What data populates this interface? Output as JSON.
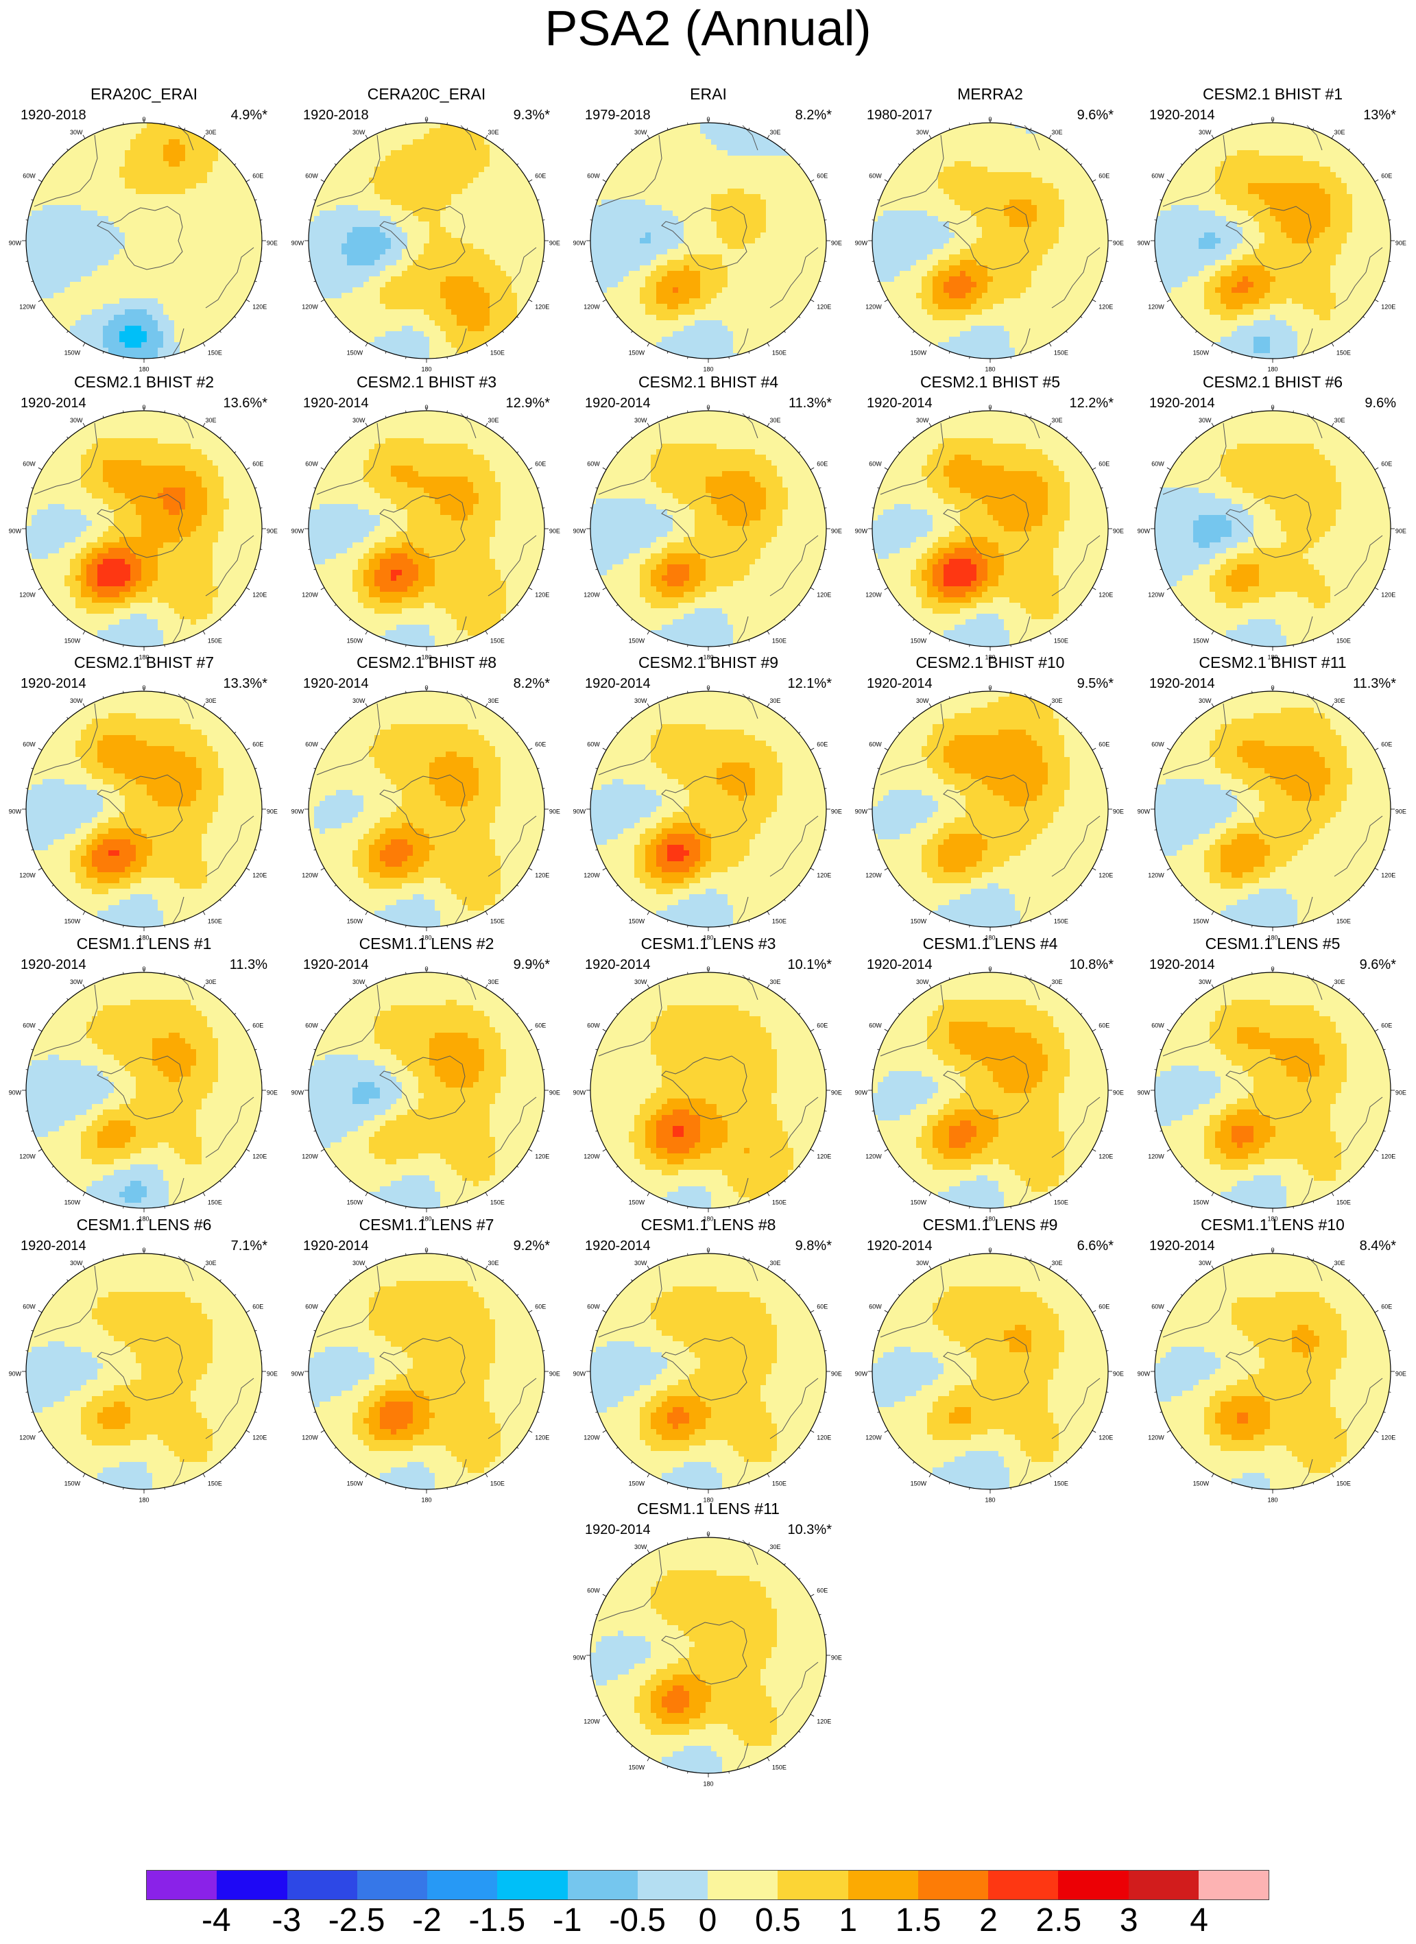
{
  "title": "PSA2 (Annual)",
  "map_labels": {
    "lon_top": "0",
    "lon_30w": "30W",
    "lon_30e": "30E",
    "lon_60w": "60W",
    "lon_60e": "60E",
    "lon_90w": "90W",
    "lon_90e": "90E",
    "lon_120w": "120W",
    "lon_120e": "120E",
    "lon_150w": "150W",
    "lon_150e": "150E",
    "lon_bottom": "180"
  },
  "colors": {
    "palette": [
      "#8a22e8",
      "#1e08f5",
      "#2d48e6",
      "#3677e8",
      "#2799f5",
      "#00bff8",
      "#75c6ee",
      "#b4def2",
      "#fbf59c",
      "#fcd535",
      "#fcaa02",
      "#fd7c06",
      "#fe3712",
      "#ec0005",
      "#d21c1c",
      "#fdb3b3"
    ],
    "land_outline": "#555555",
    "map_border": "#000000"
  },
  "colorbar": {
    "labels": [
      "-4",
      "-3",
      "-2.5",
      "-2",
      "-1.5",
      "-1",
      "-0.5",
      "0",
      "0.5",
      "1",
      "1.5",
      "2",
      "2.5",
      "3",
      "4"
    ]
  },
  "panels": [
    {
      "name": "ERA20C_ERAI",
      "period": "1920-2018",
      "pct": "4.9%*",
      "pattern": [
        -0.7,
        0.6,
        -0.2,
        0.2,
        0.5,
        -1.4,
        0.3,
        1.0
      ]
    },
    {
      "name": "CERA20C_ERAI",
      "period": "1920-2018",
      "pct": "9.3%*",
      "pattern": [
        -1.6,
        1.0,
        -0.4,
        0.4,
        1.1,
        -0.6,
        0.8,
        0.6
      ]
    },
    {
      "name": "ERAI",
      "period": "1979-2018",
      "pct": "8.2%*",
      "pattern": [
        -1.1,
        1.9,
        0.5,
        0.3,
        0.3,
        -0.6,
        0.3,
        -0.2
      ]
    },
    {
      "name": "MERRA2",
      "period": "1980-2017",
      "pct": "9.6%*",
      "pattern": [
        -0.9,
        2.0,
        0.8,
        0.5,
        0.4,
        -0.6,
        0.4,
        -0.1
      ]
    },
    {
      "name": "CESM2.1 BHIST #1",
      "period": "1920-2014",
      "pct": "13%*",
      "pattern": [
        -1.3,
        2.0,
        1.0,
        0.7,
        0.5,
        -0.9,
        0.5,
        0.1
      ]
    },
    {
      "name": "CESM2.1 BHIST #2",
      "period": "1920-2014",
      "pct": "13.6%*",
      "pattern": [
        -0.9,
        2.6,
        1.1,
        0.8,
        0.6,
        -0.7,
        0.6,
        0.1
      ]
    },
    {
      "name": "CESM2.1 BHIST #3",
      "period": "1920-2014",
      "pct": "12.9%*",
      "pattern": [
        -0.8,
        2.2,
        0.8,
        0.8,
        0.8,
        -0.5,
        0.4,
        0.2
      ]
    },
    {
      "name": "CESM2.1 BHIST #4",
      "period": "1920-2014",
      "pct": "11.3%*",
      "pattern": [
        -1.0,
        2.0,
        1.0,
        0.7,
        0.4,
        -0.7,
        0.4,
        0.1
      ]
    },
    {
      "name": "CESM2.1 BHIST #5",
      "period": "1920-2014",
      "pct": "12.2%*",
      "pattern": [
        -0.8,
        2.6,
        1.0,
        0.9,
        0.6,
        -0.7,
        0.5,
        0.1
      ]
    },
    {
      "name": "CESM2.1 BHIST #6",
      "period": "1920-2014",
      "pct": "9.6%",
      "pattern": [
        -1.3,
        1.6,
        0.6,
        0.6,
        0.5,
        -0.4,
        0.3,
        0.3
      ]
    },
    {
      "name": "CESM2.1 BHIST #7",
      "period": "1920-2014",
      "pct": "13.3%*",
      "pattern": [
        -1.1,
        2.3,
        0.9,
        1.0,
        0.5,
        -0.6,
        0.5,
        0.2
      ]
    },
    {
      "name": "CESM2.1 BHIST #8",
      "period": "1920-2014",
      "pct": "8.2%*",
      "pattern": [
        -0.6,
        1.8,
        0.8,
        0.5,
        0.7,
        -0.6,
        0.5,
        0.2
      ]
    },
    {
      "name": "CESM2.1 BHIST #9",
      "period": "1920-2014",
      "pct": "12.1%*",
      "pattern": [
        -0.8,
        2.4,
        0.8,
        0.7,
        0.4,
        -0.7,
        0.4,
        0.1
      ]
    },
    {
      "name": "CESM2.1 BHIST #10",
      "period": "1920-2014",
      "pct": "9.5%*",
      "pattern": [
        -0.7,
        1.6,
        0.8,
        0.9,
        0.3,
        -0.7,
        0.5,
        0.6
      ]
    },
    {
      "name": "CESM2.1 BHIST #11",
      "period": "1920-2014",
      "pct": "11.3%*",
      "pattern": [
        -1.0,
        1.8,
        0.9,
        0.8,
        0.3,
        -0.6,
        0.4,
        0.4
      ]
    },
    {
      "name": "CESM1.1 LENS #1",
      "period": "1920-2014",
      "pct": "11.3%",
      "pattern": [
        -1.0,
        1.6,
        0.8,
        0.6,
        0.5,
        -0.9,
        0.4,
        0.3
      ]
    },
    {
      "name": "CESM1.1 LENS #2",
      "period": "1920-2014",
      "pct": "9.9%*",
      "pattern": [
        -1.2,
        1.2,
        0.9,
        0.5,
        0.6,
        -0.5,
        0.5,
        0.2
      ]
    },
    {
      "name": "CESM1.1 LENS #3",
      "period": "1920-2014",
      "pct": "10.1%*",
      "pattern": [
        -0.3,
        1.9,
        0.4,
        0.5,
        0.9,
        -0.5,
        0.6,
        0.2
      ]
    },
    {
      "name": "CESM1.1 LENS #4",
      "period": "1920-2014",
      "pct": "10.8%*",
      "pattern": [
        -0.8,
        1.8,
        0.8,
        0.8,
        0.7,
        -0.6,
        0.6,
        0.2
      ]
    },
    {
      "name": "CESM1.1 LENS #5",
      "period": "1920-2014",
      "pct": "9.6%*",
      "pattern": [
        -0.7,
        1.8,
        0.8,
        0.8,
        0.6,
        -0.6,
        0.4,
        0.2
      ]
    },
    {
      "name": "CESM1.1 LENS #6",
      "period": "1920-2014",
      "pct": "7.1%*",
      "pattern": [
        -0.6,
        1.3,
        0.7,
        0.5,
        0.6,
        -0.4,
        0.3,
        0.2
      ]
    },
    {
      "name": "CESM1.1 LENS #7",
      "period": "1920-2014",
      "pct": "9.2%*",
      "pattern": [
        -0.7,
        2.0,
        0.6,
        0.7,
        0.7,
        -0.5,
        0.4,
        0.3
      ]
    },
    {
      "name": "CESM1.1 LENS #8",
      "period": "1920-2014",
      "pct": "9.8%*",
      "pattern": [
        -0.8,
        1.8,
        0.6,
        0.6,
        0.6,
        -0.5,
        0.4,
        0.2
      ]
    },
    {
      "name": "CESM1.1 LENS #9",
      "period": "1920-2014",
      "pct": "6.6%*",
      "pattern": [
        -0.6,
        1.2,
        0.7,
        0.6,
        0.6,
        -0.7,
        0.4,
        0.2
      ]
    },
    {
      "name": "CESM1.1 LENS #10",
      "period": "1920-2014",
      "pct": "8.4%*",
      "pattern": [
        -0.5,
        1.6,
        0.8,
        0.4,
        0.7,
        -0.3,
        0.3,
        0.2
      ]
    },
    {
      "name": "CESM1.1 LENS #11",
      "period": "1920-2014",
      "pct": "10.3%*",
      "pattern": [
        -0.6,
        1.8,
        0.6,
        0.6,
        0.6,
        -0.5,
        0.4,
        0.2
      ]
    }
  ]
}
